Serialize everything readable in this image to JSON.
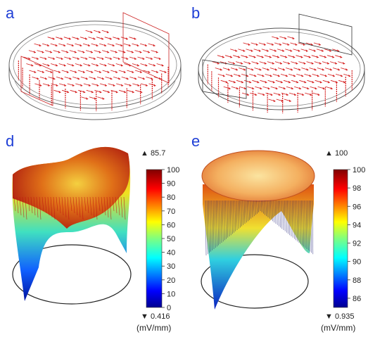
{
  "panels": [
    {
      "letter": "a"
    },
    {
      "letter": "b"
    },
    {
      "letter": "d"
    },
    {
      "letter": "e"
    }
  ],
  "colorbars": [
    {
      "max_label": "▲ 85.7",
      "min_label": "▼ 0.416",
      "unit": "(mV/mm)",
      "range": [
        0,
        100
      ],
      "ticks": [
        "100",
        "90",
        "80",
        "70",
        "60",
        "50",
        "40",
        "30",
        "20",
        "10",
        "0"
      ]
    },
    {
      "max_label": "▲ 100",
      "min_label": "▼ 0.935",
      "unit": "(mV/mm)",
      "range": [
        85,
        100
      ],
      "ticks": [
        "100",
        "98",
        "96",
        "94",
        "92",
        "90",
        "88",
        "86"
      ]
    }
  ],
  "colors": {
    "panel_letter": "#1f3fd6",
    "arrow_red": "#d41a1a",
    "outline": "#444444"
  }
}
